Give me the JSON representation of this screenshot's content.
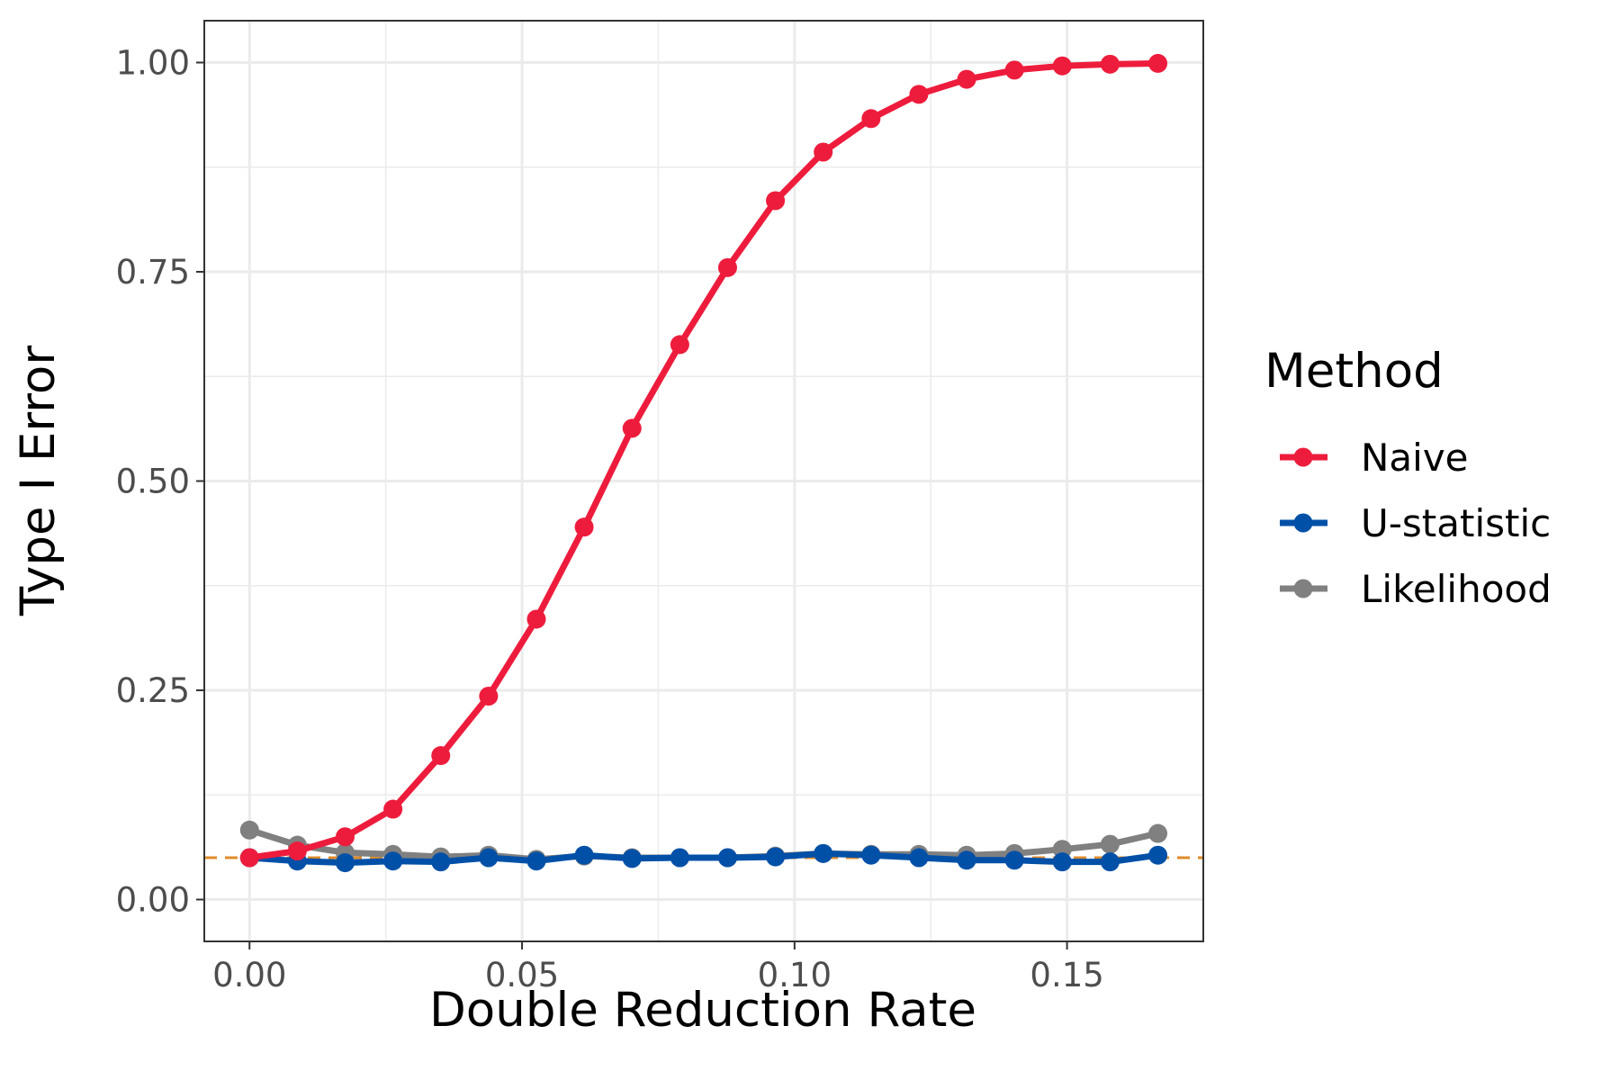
{
  "chart_data": {
    "type": "line",
    "xlabel": "Double Reduction Rate",
    "ylabel": "Type I Error",
    "xlim": [
      -0.0083,
      0.175
    ],
    "ylim": [
      -0.05,
      1.05
    ],
    "x_ticks": [
      0.0,
      0.05,
      0.1,
      0.15
    ],
    "x_tick_labels": [
      "0.00",
      "0.05",
      "0.10",
      "0.15"
    ],
    "y_ticks": [
      0.0,
      0.25,
      0.5,
      0.75,
      1.0
    ],
    "y_tick_labels": [
      "0.00",
      "0.25",
      "0.50",
      "0.75",
      "1.00"
    ],
    "grid": true,
    "reference_line": {
      "y": 0.05,
      "style": "dashed",
      "color": "#E08B2A"
    },
    "legend": {
      "title": "Method",
      "position": "right"
    },
    "x": [
      0.0,
      0.00877,
      0.01754,
      0.02632,
      0.03509,
      0.04386,
      0.05263,
      0.0614,
      0.07018,
      0.07895,
      0.08772,
      0.09649,
      0.10526,
      0.11404,
      0.12281,
      0.13158,
      0.14035,
      0.14912,
      0.15789,
      0.16667
    ],
    "series": [
      {
        "name": "Naive",
        "color": "#EE1C3C",
        "values": [
          0.05,
          0.058,
          0.075,
          0.108,
          0.172,
          0.243,
          0.335,
          0.445,
          0.563,
          0.663,
          0.755,
          0.835,
          0.893,
          0.933,
          0.962,
          0.98,
          0.991,
          0.996,
          0.998,
          0.999
        ]
      },
      {
        "name": "U-statistic",
        "color": "#0050A8",
        "values": [
          0.05,
          0.046,
          0.044,
          0.046,
          0.045,
          0.05,
          0.046,
          0.053,
          0.049,
          0.05,
          0.05,
          0.051,
          0.055,
          0.053,
          0.05,
          0.047,
          0.047,
          0.045,
          0.045,
          0.053
        ]
      },
      {
        "name": "Likelihood",
        "color": "#808080",
        "values": [
          0.083,
          0.065,
          0.056,
          0.054,
          0.051,
          0.053,
          0.048,
          0.052,
          0.05,
          0.05,
          0.05,
          0.052,
          0.055,
          0.054,
          0.054,
          0.053,
          0.055,
          0.06,
          0.066,
          0.079
        ]
      }
    ]
  }
}
